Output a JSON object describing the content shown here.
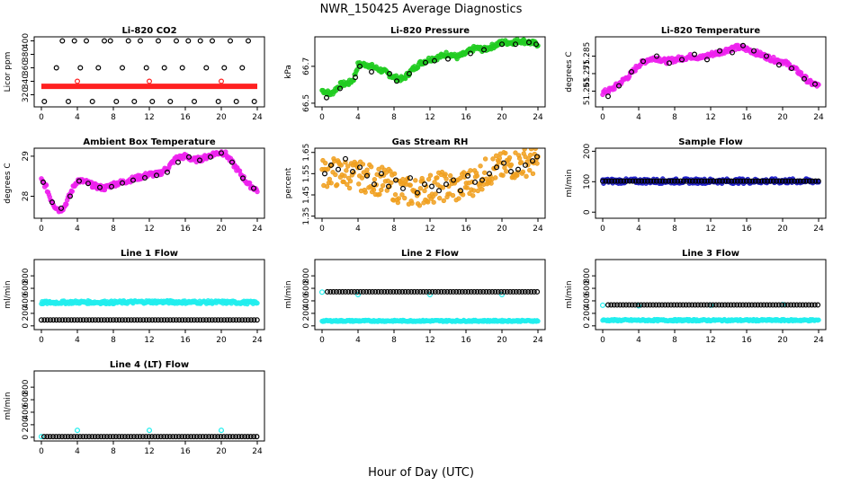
{
  "figure": {
    "title": "NWR_150425  Average Diagnostics",
    "xlabel": "Hour of Day (UTC)"
  },
  "colors": {
    "black": "#000000",
    "red": "#ff2020",
    "green": "#22cc22",
    "magenta": "#ee22ee",
    "orange": "#f0a020",
    "blue": "#2020cc",
    "cyan": "#22eeee"
  },
  "chart_data": [
    {
      "type": "scatter",
      "title": "Li-820 CO2",
      "ylabel": "Licor ppm",
      "xlim": [
        -0.8,
        24.8
      ],
      "ylim": [
        302,
        406
      ],
      "xticks": [
        0,
        4,
        8,
        12,
        16,
        20,
        24
      ],
      "yticks": [
        320,
        340,
        360,
        380,
        400
      ],
      "series": [
        {
          "color": "red",
          "style": "band",
          "x": [
            0,
            24
          ],
          "y": [
            332.5,
            332.5
          ]
        },
        {
          "color": "red",
          "style": "points",
          "x": [
            4,
            12,
            20
          ],
          "y": [
            340,
            340,
            340
          ]
        },
        {
          "color": "black",
          "style": "points",
          "x": [
            0.33,
            1.67,
            2.33,
            3,
            3.67,
            4.33,
            5,
            5.67,
            6.33,
            7,
            7.67,
            8.33,
            9,
            9.67,
            10.33,
            11,
            11.67,
            12.33,
            13,
            13.67,
            14.33,
            15,
            15.67,
            16.33,
            17,
            17.67,
            18.33,
            19,
            19.67,
            20.33,
            21,
            21.67,
            22.33,
            23,
            23.67
          ],
          "y": [
            310,
            360,
            400,
            310,
            400,
            360,
            400,
            310,
            360,
            400,
            400,
            310,
            360,
            400,
            310,
            400,
            360,
            310,
            400,
            360,
            310,
            400,
            360,
            400,
            310,
            400,
            360,
            400,
            310,
            360,
            400,
            310,
            360,
            400,
            310
          ]
        }
      ]
    },
    {
      "type": "scatter",
      "title": "Li-820 Pressure",
      "ylabel": "kPa",
      "xlim": [
        -0.8,
        24.8
      ],
      "ylim": [
        66.48,
        66.86
      ],
      "xticks": [
        0,
        4,
        8,
        12,
        16,
        20,
        24
      ],
      "yticks": [
        66.5,
        66.7
      ],
      "series": [
        {
          "color": "green",
          "style": "filled",
          "dense": true,
          "x": [
            0,
            1,
            2,
            3,
            3.5,
            4,
            5,
            6,
            7,
            8,
            9,
            10,
            11,
            12,
            13,
            14,
            15,
            16,
            17,
            18,
            19,
            20,
            21,
            22,
            23,
            24
          ],
          "y": [
            66.57,
            66.55,
            66.6,
            66.61,
            66.63,
            66.71,
            66.71,
            66.69,
            66.67,
            66.64,
            66.63,
            66.68,
            66.72,
            66.74,
            66.75,
            66.77,
            66.75,
            66.77,
            66.8,
            66.79,
            66.81,
            66.83,
            66.83,
            66.84,
            66.83,
            66.82
          ]
        },
        {
          "color": "black",
          "style": "points",
          "x": [
            0.5,
            2,
            3.7,
            4.2,
            5.5,
            7.5,
            8.3,
            9.7,
            11.5,
            12.5,
            14,
            16.5,
            18,
            20,
            21.5,
            23,
            23.8
          ],
          "y": [
            66.53,
            66.58,
            66.64,
            66.7,
            66.67,
            66.66,
            66.62,
            66.66,
            66.72,
            66.73,
            66.74,
            66.77,
            66.79,
            66.82,
            66.82,
            66.83,
            66.82
          ]
        }
      ]
    },
    {
      "type": "scatter",
      "title": "Li-820 Temperature",
      "ylabel": "degrees C",
      "xlim": [
        -0.8,
        24.8
      ],
      "ylim": [
        51.256,
        51.296
      ],
      "xticks": [
        0,
        4,
        8,
        12,
        16,
        20,
        24
      ],
      "yticks": [
        51.265,
        51.275,
        51.285
      ],
      "series": [
        {
          "color": "magenta",
          "style": "filled",
          "dense": true,
          "x": [
            0,
            1,
            2,
            3,
            4,
            5,
            6,
            7,
            8,
            9,
            10,
            11,
            12,
            13,
            14,
            15,
            16,
            17,
            18,
            19,
            20,
            21,
            22,
            23,
            24
          ],
          "y": [
            51.264,
            51.266,
            51.27,
            51.274,
            51.28,
            51.283,
            51.284,
            51.282,
            51.283,
            51.284,
            51.285,
            51.284,
            51.286,
            51.287,
            51.289,
            51.29,
            51.289,
            51.287,
            51.285,
            51.283,
            51.282,
            51.279,
            51.275,
            51.27,
            51.268
          ]
        },
        {
          "color": "black",
          "style": "points",
          "x": [
            0.6,
            1.8,
            3.2,
            4.5,
            6,
            7.4,
            8.8,
            10.2,
            11.6,
            13,
            14.4,
            15.6,
            16.8,
            18.2,
            19.6,
            21,
            22.4,
            23.6
          ],
          "y": [
            51.262,
            51.268,
            51.276,
            51.282,
            51.285,
            51.281,
            51.283,
            51.286,
            51.283,
            51.288,
            51.287,
            51.291,
            51.288,
            51.285,
            51.28,
            51.278,
            51.272,
            51.269
          ]
        }
      ]
    },
    {
      "type": "scatter",
      "title": "Ambient Box Temperature",
      "ylabel": "degrees C",
      "xlim": [
        -0.8,
        24.8
      ],
      "ylim": [
        27.45,
        29.2
      ],
      "xticks": [
        0,
        4,
        8,
        12,
        16,
        20,
        24
      ],
      "yticks": [
        28.0,
        29.0
      ],
      "series": [
        {
          "color": "magenta",
          "style": "filled",
          "dense": true,
          "x": [
            0,
            0.5,
            1,
            1.5,
            2,
            2.5,
            3,
            3.5,
            4,
            5,
            6,
            7,
            8,
            9,
            10,
            11,
            12,
            13,
            14,
            15,
            16,
            16.5,
            17,
            18,
            19,
            20,
            20.5,
            21,
            22,
            23,
            24
          ],
          "y": [
            28.4,
            28.25,
            27.95,
            27.75,
            27.65,
            27.72,
            27.95,
            28.2,
            28.4,
            28.35,
            28.25,
            28.2,
            28.3,
            28.35,
            28.42,
            28.48,
            28.55,
            28.55,
            28.7,
            28.95,
            29.0,
            28.95,
            28.9,
            28.95,
            29.05,
            29.1,
            29.05,
            28.9,
            28.6,
            28.3,
            28.15
          ]
        },
        {
          "color": "black",
          "style": "points",
          "x": [
            0.2,
            1.2,
            2.2,
            3.2,
            4.2,
            5.2,
            6.5,
            7.8,
            9,
            10.2,
            11.5,
            12.8,
            14,
            15.2,
            16.4,
            17.6,
            18.8,
            20,
            21.2,
            22.4,
            23.6
          ],
          "y": [
            28.35,
            27.85,
            27.7,
            28.0,
            28.38,
            28.32,
            28.22,
            28.24,
            28.33,
            28.4,
            28.46,
            28.52,
            28.6,
            28.85,
            28.98,
            28.9,
            28.98,
            29.08,
            28.85,
            28.45,
            28.2
          ]
        }
      ]
    },
    {
      "type": "scatter",
      "title": "Gas Stream RH",
      "ylabel": "percent",
      "xlim": [
        -0.8,
        24.8
      ],
      "ylim": [
        1.34,
        1.67
      ],
      "xticks": [
        0,
        4,
        8,
        12,
        16,
        20,
        24
      ],
      "yticks": [
        1.35,
        1.45,
        1.55,
        1.65
      ],
      "series": [
        {
          "color": "orange",
          "style": "filled",
          "dense": true,
          "spread": 0.07,
          "x": [
            0,
            1,
            2,
            3,
            4,
            5,
            6,
            7,
            8,
            9,
            10,
            11,
            12,
            13,
            14,
            15,
            16,
            17,
            18,
            19,
            20,
            21,
            22,
            23,
            24
          ],
          "y": [
            1.55,
            1.56,
            1.55,
            1.55,
            1.54,
            1.53,
            1.52,
            1.51,
            1.49,
            1.47,
            1.46,
            1.47,
            1.48,
            1.49,
            1.49,
            1.48,
            1.5,
            1.52,
            1.55,
            1.57,
            1.58,
            1.59,
            1.6,
            1.61,
            1.6
          ]
        },
        {
          "color": "black",
          "style": "points",
          "x": [
            0.3,
            1,
            1.8,
            2.6,
            3.4,
            4.2,
            5,
            5.8,
            6.6,
            7.4,
            8.2,
            9,
            9.8,
            10.6,
            11.4,
            12.2,
            13,
            13.8,
            14.6,
            15.4,
            16.2,
            17,
            17.8,
            18.6,
            19.4,
            20.2,
            21,
            21.8,
            22.6,
            23.4,
            23.9
          ],
          "y": [
            1.55,
            1.59,
            1.57,
            1.62,
            1.56,
            1.58,
            1.54,
            1.5,
            1.55,
            1.49,
            1.52,
            1.48,
            1.53,
            1.46,
            1.5,
            1.49,
            1.47,
            1.5,
            1.52,
            1.47,
            1.54,
            1.51,
            1.52,
            1.55,
            1.58,
            1.6,
            1.56,
            1.57,
            1.59,
            1.61,
            1.63
          ]
        }
      ]
    },
    {
      "type": "scatter",
      "title": "Sample Flow",
      "ylabel": "ml/min",
      "xlim": [
        -0.8,
        24.8
      ],
      "ylim": [
        -20,
        210
      ],
      "xticks": [
        0,
        4,
        8,
        12,
        16,
        20,
        24
      ],
      "yticks": [
        0,
        100,
        200
      ],
      "series": [
        {
          "color": "blue",
          "style": "filled",
          "dense": true,
          "x": [
            0,
            24
          ],
          "y": [
            102,
            102
          ]
        },
        {
          "color": "black",
          "style": "regular",
          "x0": 0,
          "x1": 24,
          "step": 0.333,
          "y": 102
        }
      ]
    },
    {
      "type": "scatter",
      "title": "Line 1 Flow",
      "ylabel": "ml/min",
      "xlim": [
        -0.8,
        24.8
      ],
      "ylim": [
        -60,
        1060
      ],
      "xticks": [
        0,
        4,
        8,
        12,
        16,
        20,
        24
      ],
      "yticks": [
        0,
        200,
        400,
        600,
        800
      ],
      "series": [
        {
          "color": "cyan",
          "style": "filled",
          "dense": true,
          "spread": 25,
          "x": [
            0,
            4,
            8,
            12,
            16,
            20,
            24
          ],
          "y": [
            370,
            380,
            375,
            385,
            380,
            378,
            372
          ]
        },
        {
          "color": "black",
          "style": "regular",
          "x0": 0,
          "x1": 24,
          "step": 0.333,
          "y": 95
        }
      ]
    },
    {
      "type": "scatter",
      "title": "Line 2 Flow",
      "ylabel": "ml/min",
      "xlim": [
        -0.8,
        24.8
      ],
      "ylim": [
        -60,
        1060
      ],
      "xticks": [
        0,
        4,
        8,
        12,
        16,
        20,
        24
      ],
      "yticks": [
        0,
        200,
        400,
        600,
        800
      ],
      "series": [
        {
          "color": "cyan",
          "style": "filled",
          "dense": true,
          "spread": 12,
          "x": [
            0,
            24
          ],
          "y": [
            80,
            80
          ]
        },
        {
          "color": "cyan",
          "style": "points",
          "x": [
            0,
            4,
            12,
            20
          ],
          "y": [
            540,
            500,
            500,
            500
          ]
        },
        {
          "color": "black",
          "style": "regular",
          "x0": 0.6,
          "x1": 24,
          "step": 0.333,
          "y": 545
        }
      ]
    },
    {
      "type": "scatter",
      "title": "Line 3 Flow",
      "ylabel": "ml/min",
      "xlim": [
        -0.8,
        24.8
      ],
      "ylim": [
        -60,
        1060
      ],
      "xticks": [
        0,
        4,
        8,
        12,
        16,
        20,
        24
      ],
      "yticks": [
        0,
        200,
        400,
        600,
        800
      ],
      "series": [
        {
          "color": "cyan",
          "style": "filled",
          "dense": true,
          "spread": 14,
          "x": [
            0,
            24
          ],
          "y": [
            90,
            90
          ]
        },
        {
          "color": "cyan",
          "style": "points",
          "x": [
            0,
            4,
            12,
            20
          ],
          "y": [
            330,
            320,
            330,
            340
          ]
        },
        {
          "color": "black",
          "style": "regular",
          "x0": 0.6,
          "x1": 24,
          "step": 0.333,
          "y": 335
        }
      ]
    },
    {
      "type": "scatter",
      "title": "Line 4 (LT) Flow",
      "ylabel": "ml/min",
      "xlim": [
        -0.8,
        24.8
      ],
      "ylim": [
        -60,
        1060
      ],
      "xticks": [
        0,
        4,
        8,
        12,
        16,
        20,
        24
      ],
      "yticks": [
        0,
        200,
        400,
        600,
        800
      ],
      "series": [
        {
          "color": "cyan",
          "style": "points",
          "x": [
            0,
            4,
            12,
            20
          ],
          "y": [
            10,
            110,
            110,
            110
          ]
        },
        {
          "color": "black",
          "style": "regular",
          "x0": 0.3,
          "x1": 24,
          "step": 0.333,
          "y": 10
        }
      ]
    }
  ]
}
